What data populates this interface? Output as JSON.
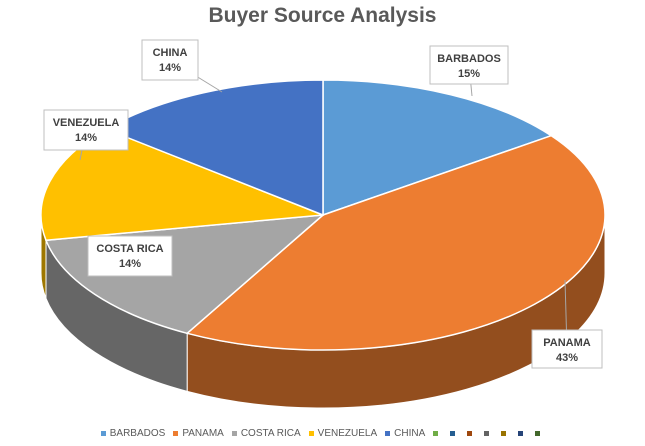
{
  "chart_data": {
    "type": "pie",
    "title": "Buyer Source Analysis",
    "slices": [
      {
        "label": "BARBADOS",
        "value": 15,
        "display": "15%",
        "color": "#5B9BD5"
      },
      {
        "label": "PANAMA",
        "value": 43,
        "display": "43%",
        "color": "#ED7D31"
      },
      {
        "label": "COSTA RICA",
        "value": 14,
        "display": "14%",
        "color": "#A5A5A5"
      },
      {
        "label": "VENEZUELA",
        "value": 14,
        "display": "14%",
        "color": "#FFC000"
      },
      {
        "label": "CHINA",
        "value": 14,
        "display": "14%",
        "color": "#4472C4"
      }
    ],
    "legend": {
      "position": "bottom",
      "entries": [
        "BARBADOS",
        "PANAMA",
        "COSTA RICA",
        "VENEZUELA",
        "CHINA"
      ],
      "extra_swatch_colors": [
        "#70AD47",
        "#255E91",
        "#9E480E",
        "#636363",
        "#997300",
        "#264478",
        "#43682B"
      ]
    },
    "style": "3d-pie"
  }
}
